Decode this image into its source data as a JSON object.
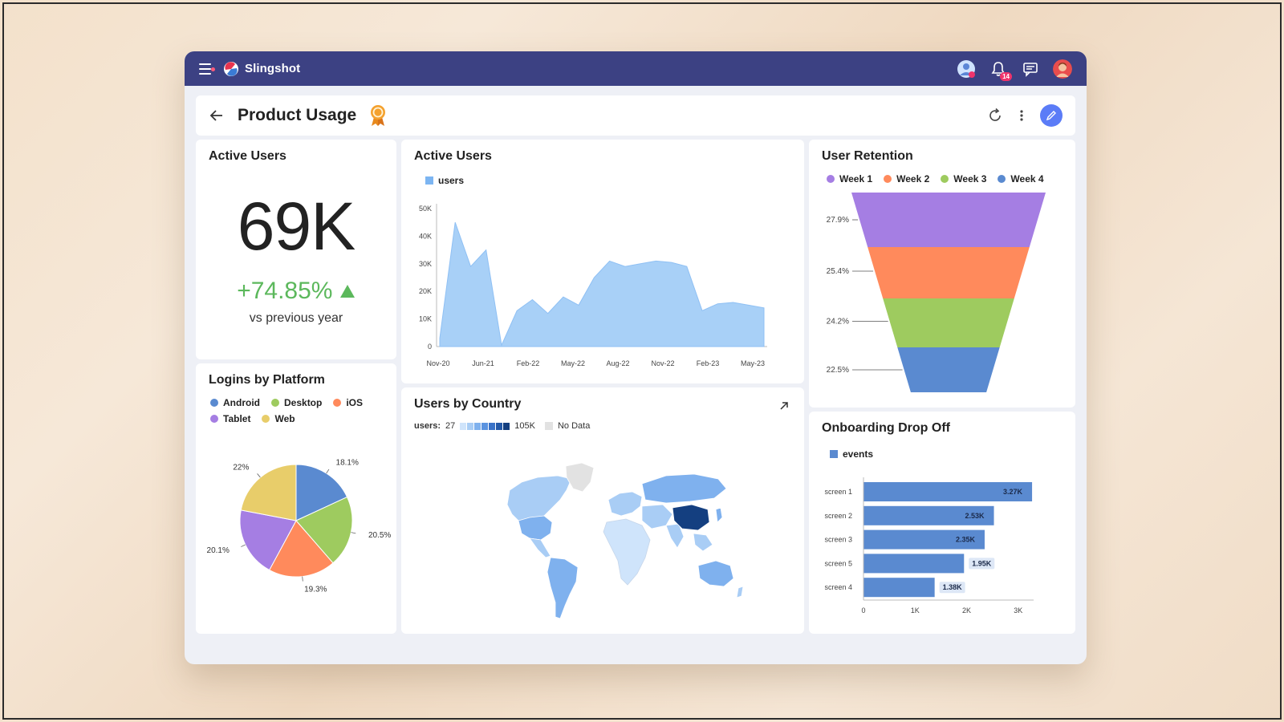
{
  "app": {
    "brand": "Slingshot"
  },
  "topbar": {
    "notifications_count": "14"
  },
  "header": {
    "title": "Product Usage"
  },
  "kpi": {
    "title": "Active Users",
    "value": "69K",
    "change": "+74.85%",
    "note": "vs previous year"
  },
  "active_users_chart": {
    "title": "Active Users",
    "legend": "users",
    "chart_data": {
      "type": "area",
      "series": [
        {
          "name": "users",
          "color": "#a8d0f7",
          "values": [
            3000,
            45000,
            29000,
            35000,
            500,
            13000,
            17000,
            12000,
            18000,
            15000,
            25000,
            31000,
            29000,
            30000,
            31000,
            30500,
            29000,
            13000,
            15500,
            16000,
            15000,
            14000
          ]
        }
      ],
      "y_ticks": [
        "0",
        "10K",
        "20K",
        "30K",
        "40K",
        "50K"
      ],
      "x_ticks": [
        "Nov-20",
        "Jun-21",
        "Feb-22",
        "May-22",
        "Aug-22",
        "Nov-22",
        "Feb-23",
        "May-23"
      ],
      "ylim": [
        0,
        50000
      ]
    }
  },
  "retention": {
    "title": "User Retention",
    "legend": [
      {
        "label": "Week 1",
        "color": "#a57ee3"
      },
      {
        "label": "Week 2",
        "color": "#ff8a5c"
      },
      {
        "label": "Week 3",
        "color": "#9ecb5f"
      },
      {
        "label": "Week 4",
        "color": "#5a8ad0"
      }
    ],
    "chart_data": {
      "type": "funnel",
      "categories": [
        "Week 1",
        "Week 2",
        "Week 3",
        "Week 4"
      ],
      "values": [
        27.9,
        25.4,
        24.2,
        22.5
      ],
      "labels": [
        "27.9%",
        "25.4%",
        "24.2%",
        "22.5%"
      ]
    }
  },
  "logins": {
    "title": "Logins by Platform",
    "legend": [
      {
        "label": "Android",
        "color": "#5a8ad0"
      },
      {
        "label": "Desktop",
        "color": "#9ecb5f"
      },
      {
        "label": "iOS",
        "color": "#ff8a5c"
      },
      {
        "label": "Tablet",
        "color": "#a57ee3"
      },
      {
        "label": "Web",
        "color": "#e8cd6a"
      }
    ],
    "chart_data": {
      "type": "pie",
      "categories": [
        "Android",
        "Desktop",
        "iOS",
        "Tablet",
        "Web"
      ],
      "values": [
        18.1,
        20.5,
        19.3,
        20.1,
        22
      ],
      "labels": [
        "18.1%",
        "20.5%",
        "19.3%",
        "20.1%",
        "22%"
      ]
    }
  },
  "country": {
    "title": "Users by Country",
    "scale_label": "users:",
    "scale_min": "27",
    "scale_max": "105K",
    "no_data": "No Data"
  },
  "onboarding": {
    "title": "Onboarding Drop Off",
    "legend": "events",
    "chart_data": {
      "type": "bar",
      "orientation": "horizontal",
      "categories": [
        "screen 1",
        "screen 2",
        "screen 3",
        "screen 5",
        "screen 4"
      ],
      "values": [
        3270,
        2530,
        2350,
        1950,
        1380
      ],
      "labels": [
        "3.27K",
        "2.53K",
        "2.35K",
        "1.95K",
        "1.38K"
      ],
      "x_ticks": [
        "0",
        "1K",
        "2K",
        "3K"
      ],
      "xlim": [
        0,
        3300
      ]
    }
  }
}
